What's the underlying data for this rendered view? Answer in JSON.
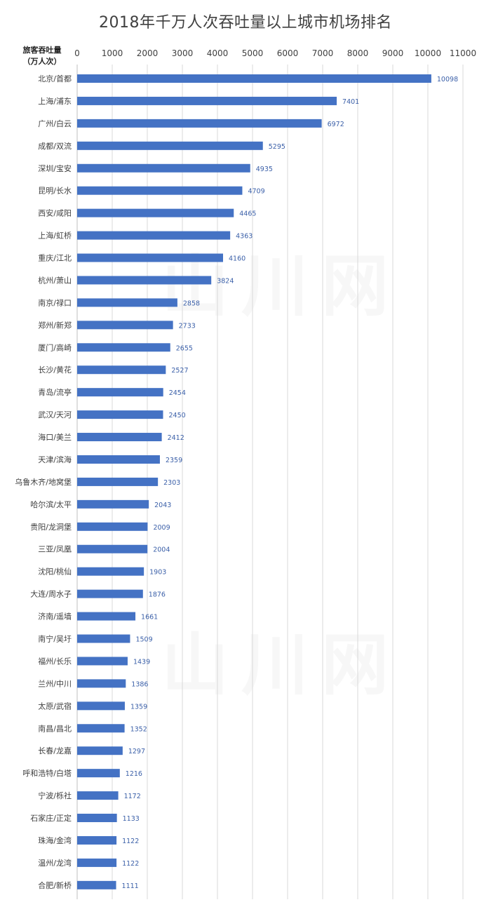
{
  "chart_data": {
    "type": "bar",
    "orientation": "horizontal",
    "title": "2018年千万人次吞吐量以上城市机场排名",
    "ylabel_line1": "旅客吞吐量",
    "ylabel_line2": "（万人次）",
    "xlim": [
      0,
      11000
    ],
    "x_ticks": [
      "0",
      "1000",
      "2000",
      "3000",
      "4000",
      "5000",
      "6000",
      "7000",
      "8000",
      "9000",
      "10000",
      "11000"
    ],
    "grid": "vertical",
    "color": "#4472C4",
    "categories": [
      "北京/首都",
      "上海/浦东",
      "广州/白云",
      "成都/双流",
      "深圳/宝安",
      "昆明/长水",
      "西安/咸阳",
      "上海/虹桥",
      "重庆/江北",
      "杭州/萧山",
      "南京/禄口",
      "郑州/新郑",
      "厦门/高崎",
      "长沙/黄花",
      "青岛/流亭",
      "武汉/天河",
      "海口/美兰",
      "天津/滨海",
      "乌鲁木齐/地窝堡",
      "哈尔滨/太平",
      "贵阳/龙洞堡",
      "三亚/凤凰",
      "沈阳/桃仙",
      "大连/周水子",
      "济南/遥墙",
      "南宁/吴圩",
      "福州/长乐",
      "兰州/中川",
      "太原/武宿",
      "南昌/昌北",
      "长春/龙嘉",
      "呼和浩特/白塔",
      "宁波/栎社",
      "石家庄/正定",
      "珠海/金湾",
      "温州/龙湾",
      "合肥/新桥"
    ],
    "values": [
      10098,
      7401,
      6972,
      5295,
      4935,
      4709,
      4465,
      4363,
      4160,
      3824,
      2858,
      2733,
      2655,
      2527,
      2454,
      2450,
      2412,
      2359,
      2303,
      2043,
      2009,
      2004,
      1903,
      1876,
      1661,
      1509,
      1439,
      1386,
      1359,
      1352,
      1297,
      1216,
      1172,
      1133,
      1122,
      1122,
      1111
    ]
  }
}
